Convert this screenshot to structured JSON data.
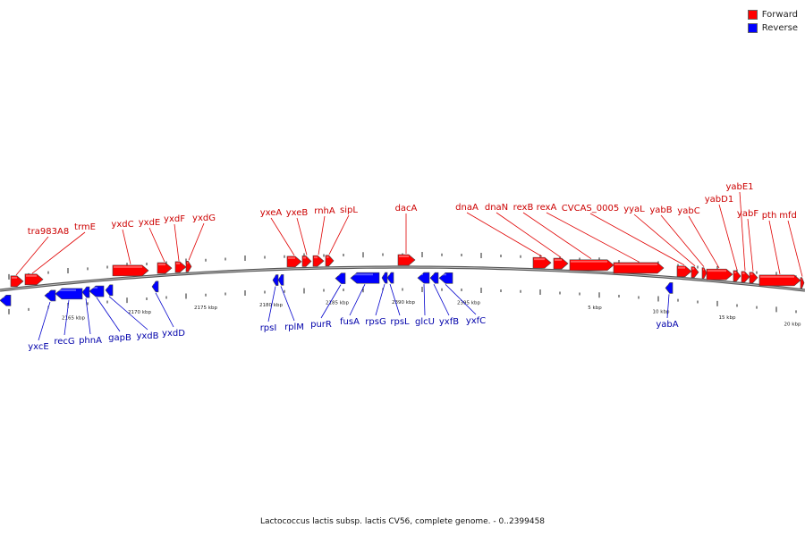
{
  "legend": [
    {
      "label": "Forward",
      "color": "#ff0000"
    },
    {
      "label": "Reverse",
      "color": "#0000ff"
    }
  ],
  "caption": "Lactococcus lactis subsp. lactis CV56, complete genome. - 0..2399458",
  "colors": {
    "forward": "#ff0000",
    "reverse": "#0000ff",
    "backbone": "#7a7a7a"
  },
  "scale_labels": [
    "2165 kbp",
    "2170 kbp",
    "2175 kbp",
    "2180 kbp",
    "2185 kbp",
    "2390 kbp",
    "2395 kbp",
    "5 kbp",
    "10 kbp",
    "15 kbp",
    "20 kbp"
  ],
  "genes_forward": [
    "tra983A8",
    "trmE",
    "yxdC",
    "yxdE",
    "yxdF",
    "yxdG",
    "yxeA",
    "yxeB",
    "rnhA",
    "sipL",
    "dacA",
    "dnaA",
    "dnaN",
    "rexB",
    "rexA",
    "CVCAS_0005",
    "yyaL",
    "yabB",
    "yabC",
    "yabD1",
    "yabE1",
    "yabF",
    "pth",
    "mfd"
  ],
  "genes_reverse": [
    "yxcE",
    "recG",
    "phnA",
    "gapB",
    "yxdB",
    "yxdD",
    "rpsI",
    "rplM",
    "purR",
    "fusA",
    "rpsG",
    "rpsL",
    "glcU",
    "yxfB",
    "yxfC",
    "yabA"
  ]
}
